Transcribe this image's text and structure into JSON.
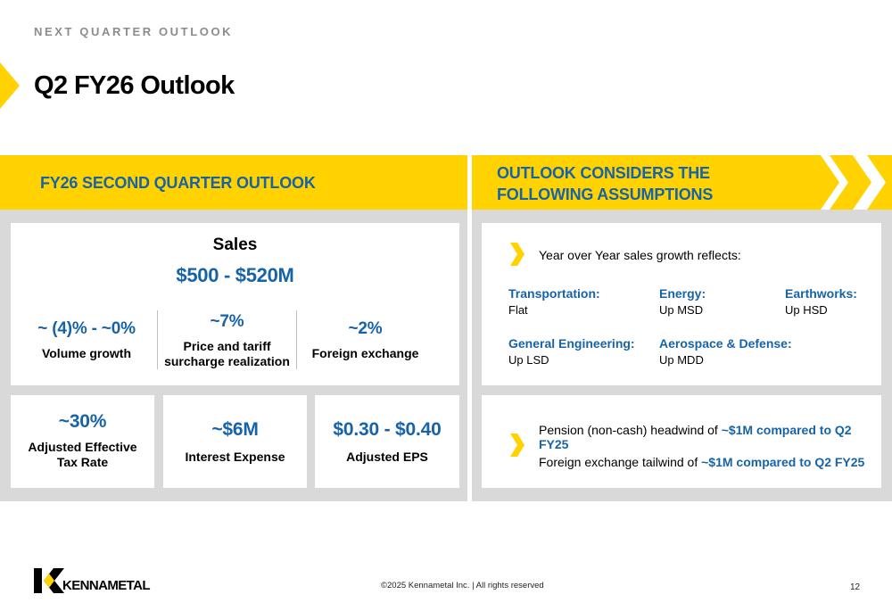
{
  "header": {
    "eyebrow": "NEXT QUARTER OUTLOOK",
    "title": "Q2 FY26 Outlook"
  },
  "left_section": {
    "heading": "FY26 SECOND QUARTER OUTLOOK",
    "sales": {
      "label": "Sales",
      "value": "$500 - $520M",
      "components": [
        {
          "value": "~ (4)% - ~0%",
          "label": "Volume growth"
        },
        {
          "value": "~7%",
          "label_line1": "Price and tariff",
          "label_line2": "surcharge realization"
        },
        {
          "value": "~2%",
          "label": "Foreign exchange"
        }
      ]
    },
    "metrics": [
      {
        "value": "~30%",
        "label_line1": "Adjusted Effective",
        "label_line2": "Tax Rate"
      },
      {
        "value": "~$6M",
        "label": "Interest Expense"
      },
      {
        "value": "$0.30 - $0.40",
        "label": "Adjusted EPS"
      }
    ]
  },
  "right_section": {
    "heading_line1": "OUTLOOK CONSIDERS THE",
    "heading_line2": "FOLLOWING ASSUMPTIONS",
    "growth": {
      "intro": "Year over Year sales growth reflects:",
      "segments": [
        {
          "name": "Transportation:",
          "value": "Flat"
        },
        {
          "name": "Energy:",
          "value": "Up MSD"
        },
        {
          "name": "Earthworks:",
          "value": "Up HSD"
        },
        {
          "name": "General Engineering:",
          "value": "Up LSD"
        },
        {
          "name": "Aerospace & Defense:",
          "value": "Up MDD"
        }
      ]
    },
    "other": {
      "pension_text": "Pension (non-cash) headwind of ",
      "pension_highlight": "~$1M compared to Q2 FY25",
      "fx_text": "Foreign exchange tailwind of ",
      "fx_highlight": "~$1M compared to Q2 FY25"
    }
  },
  "footer": {
    "brand": "KENNAMETAL",
    "copyright": "©2025 Kennametal Inc.  |  All rights reserved",
    "page_number": "12"
  },
  "colors": {
    "accent_yellow": "#ffd200",
    "accent_blue": "#1763a8",
    "panel_gray": "#d9d9d9",
    "eyebrow_gray": "#8c8c8c"
  },
  "icons": [
    "title-arrow-icon",
    "chevron-right-icon",
    "kennametal-logo-icon"
  ]
}
